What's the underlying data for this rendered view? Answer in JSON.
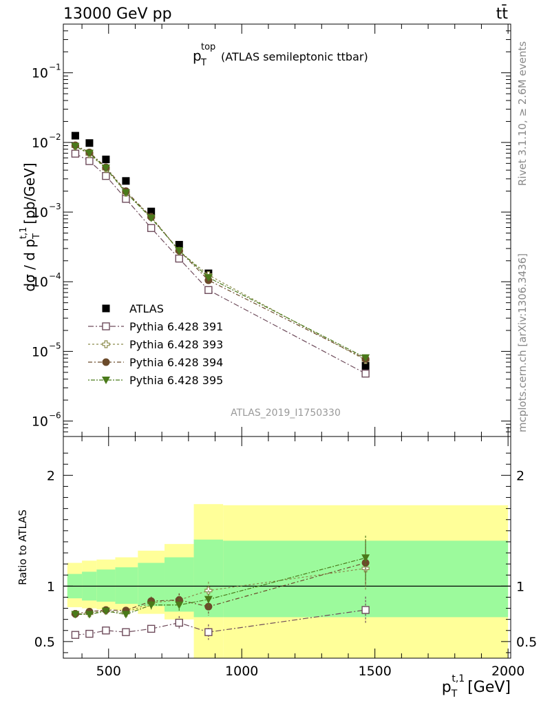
{
  "header": {
    "energy_label": "13000 GeV pp",
    "process_label": "tt̄"
  },
  "side_labels": {
    "rivet": "Rivet 3.1.10, ≥ 2.6M events",
    "mcplots": "mcplots.cern.ch [arXiv:1306.3436]"
  },
  "analysis_id": "ATLAS_2019_I1750330",
  "chart_data": [
    {
      "type": "scatter",
      "title": "(ATLAS semileptonic ttbar)",
      "title_main": "p",
      "title_sup": "top",
      "title_sub": "T",
      "ylabel": "dσ / d p",
      "ylabel_sup": "t,1",
      "ylabel_sub": "T",
      "ylabel_unit": "[pb/GeV]",
      "yscale": "log",
      "ylim": [
        6e-07,
        0.5
      ],
      "xlim": [
        330,
        2010
      ],
      "ytick_labels": [
        {
          "base": "10",
          "exp": "−1",
          "value": 0.1
        },
        {
          "base": "10",
          "exp": "−2",
          "value": 0.01
        },
        {
          "base": "10",
          "exp": "−3",
          "value": 0.001
        },
        {
          "base": "10",
          "exp": "−4",
          "value": 0.0001
        },
        {
          "base": "10",
          "exp": "−5",
          "value": 1e-05
        },
        {
          "base": "10",
          "exp": "−6",
          "value": 1e-06
        }
      ],
      "legend_position": "lower-left",
      "series": [
        {
          "name": "ATLAS",
          "color": "#000000",
          "marker": "filled-square",
          "x": [
            375,
            428,
            490,
            565,
            660,
            765,
            875,
            1465
          ],
          "y": [
            0.0125,
            0.0098,
            0.0057,
            0.0028,
            0.00102,
            0.00034,
            0.000132,
            6.2e-06
          ]
        },
        {
          "name": "Pythia 6.428 391",
          "color": "#6d4a5a",
          "marker": "open-square",
          "x": [
            375,
            428,
            490,
            565,
            660,
            765,
            875,
            1465
          ],
          "y": [
            0.0069,
            0.0054,
            0.0033,
            0.00155,
            0.00059,
            0.000215,
            7.6e-05,
            4.8e-06
          ]
        },
        {
          "name": "Pythia 6.428 393",
          "color": "#8a8a4a",
          "marker": "open-cross",
          "x": [
            375,
            428,
            490,
            565,
            660,
            765,
            875,
            1465
          ],
          "y": [
            0.0088,
            0.0068,
            0.0042,
            0.0019,
            0.00085,
            0.000275,
            0.000125,
            7.5e-06
          ]
        },
        {
          "name": "Pythia 6.428 394",
          "color": "#6b4a2a",
          "marker": "filled-circle",
          "x": [
            375,
            428,
            490,
            565,
            660,
            765,
            875,
            1465
          ],
          "y": [
            0.0091,
            0.0072,
            0.0044,
            0.002,
            0.00085,
            0.00028,
            0.000105,
            7.8e-06
          ]
        },
        {
          "name": "Pythia 6.428 395",
          "color": "#4a7a1a",
          "marker": "filled-triangle-down",
          "x": [
            375,
            428,
            490,
            565,
            660,
            765,
            875,
            1465
          ],
          "y": [
            0.0088,
            0.007,
            0.0043,
            0.0019,
            0.00082,
            0.00028,
            0.000115,
            8.1e-06
          ]
        }
      ]
    },
    {
      "type": "scatter",
      "ylabel": "Ratio to ATLAS",
      "xlabel": "p",
      "xlabel_sup": "t,1",
      "xlabel_sub": "T",
      "xlabel_unit": "[GeV]",
      "ylim": [
        0.35,
        2.35
      ],
      "xlim": [
        330,
        2010
      ],
      "xticks": [
        500,
        1000,
        1500,
        2000
      ],
      "xtick_labels": [
        "500",
        "1000",
        "1500",
        "2000"
      ],
      "yticks": [
        0.5,
        1,
        2
      ],
      "ytick_labels": [
        "0.5",
        "1",
        "2"
      ],
      "reference_line": 1,
      "bands": {
        "edges": [
          345,
          400,
          455,
          525,
          610,
          710,
          820,
          930,
          2000
        ],
        "inner_low": [
          0.89,
          0.87,
          0.86,
          0.84,
          0.82,
          0.77,
          0.72,
          0.72
        ],
        "inner_high": [
          1.11,
          1.13,
          1.15,
          1.17,
          1.21,
          1.26,
          1.42,
          1.41
        ],
        "outer_low": [
          0.81,
          0.8,
          0.79,
          0.78,
          0.75,
          0.7,
          0.35,
          0.35
        ],
        "outer_high": [
          1.21,
          1.23,
          1.24,
          1.26,
          1.32,
          1.38,
          1.74,
          1.73
        ],
        "inner_color": "#9cfa9c",
        "outer_color": "#ffff99"
      },
      "series": [
        {
          "name": "Pythia 6.428 391",
          "color": "#6d4a5a",
          "marker": "open-square",
          "x": [
            375,
            428,
            490,
            565,
            660,
            765,
            875,
            1465
          ],
          "y": [
            0.56,
            0.57,
            0.6,
            0.585,
            0.615,
            0.67,
            0.585,
            0.785
          ],
          "err": [
            0.02,
            0.02,
            0.02,
            0.02,
            0.035,
            0.06,
            0.07,
            0.12
          ]
        },
        {
          "name": "Pythia 6.428 393",
          "color": "#8a8a4a",
          "marker": "open-cross",
          "x": [
            375,
            428,
            490,
            565,
            660,
            765,
            875,
            1465
          ],
          "y": [
            0.75,
            0.755,
            0.78,
            0.76,
            0.85,
            0.875,
            0.96,
            1.16
          ],
          "err": [
            0.025,
            0.025,
            0.025,
            0.025,
            0.04,
            0.06,
            0.08,
            0.2
          ]
        },
        {
          "name": "Pythia 6.428 394",
          "color": "#6b4a2a",
          "marker": "filled-circle",
          "x": [
            375,
            428,
            490,
            565,
            660,
            765,
            875,
            1465
          ],
          "y": [
            0.75,
            0.77,
            0.785,
            0.78,
            0.865,
            0.875,
            0.815,
            1.21
          ],
          "err": [
            0.025,
            0.025,
            0.025,
            0.025,
            0.04,
            0.06,
            0.08,
            0.2
          ]
        },
        {
          "name": "Pythia 6.428 395",
          "color": "#4a7a1a",
          "marker": "filled-triangle-down",
          "x": [
            375,
            428,
            490,
            565,
            660,
            765,
            875,
            1465
          ],
          "y": [
            0.745,
            0.745,
            0.775,
            0.745,
            0.83,
            0.83,
            0.88,
            1.255
          ],
          "err": [
            0.025,
            0.025,
            0.025,
            0.025,
            0.04,
            0.06,
            0.08,
            0.2
          ]
        }
      ]
    }
  ]
}
